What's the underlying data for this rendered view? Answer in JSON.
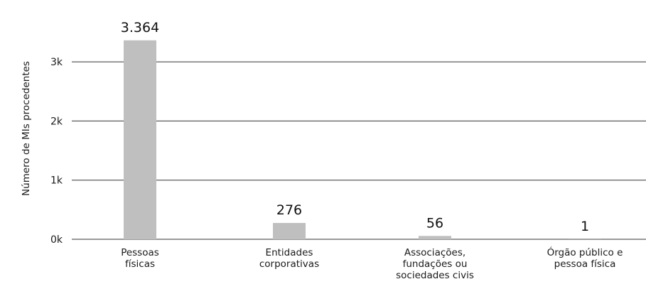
{
  "chart_data": {
    "type": "bar",
    "categories": [
      "Pessoas físicas",
      "Entidades corporativas",
      "Associações, fundações ou sociedades civis",
      "Órgão público e pessoa física"
    ],
    "category_label_lines": [
      [
        "Pessoas",
        "físicas"
      ],
      [
        "Entidades",
        "corporativas"
      ],
      [
        "Associações,",
        "fundações ou",
        "sociedades civis"
      ],
      [
        "Órgão público e",
        "pessoa física"
      ]
    ],
    "values": [
      3364,
      276,
      56,
      1
    ],
    "data_labels": [
      "3.364",
      "276",
      "56",
      "1"
    ],
    "title": "",
    "xlabel": "",
    "ylabel": "Número de MIs procedentes",
    "ylim": [
      0,
      3800
    ],
    "yticks": [
      0,
      1000,
      2000,
      3000
    ],
    "ytick_labels": [
      "0k",
      "1k",
      "2k",
      "3k"
    ],
    "grid": true,
    "colors": {
      "bar": "#bfbfbf",
      "grid": "#333333",
      "text": "#1a1a1a"
    }
  }
}
